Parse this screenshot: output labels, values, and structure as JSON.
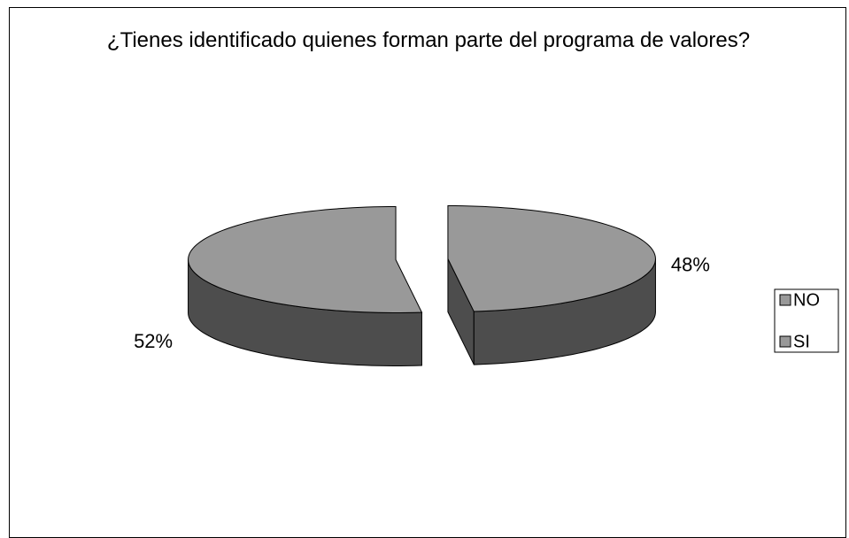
{
  "chart_data": {
    "type": "pie3d",
    "title": "¿Tienes identificado quienes forman parte del programa de valores?",
    "categories": [
      "NO",
      "SI"
    ],
    "values": [
      48,
      52
    ],
    "value_labels": [
      "48%",
      "52%"
    ],
    "colors": [
      "#999999",
      "#999999"
    ],
    "legend": "right"
  }
}
